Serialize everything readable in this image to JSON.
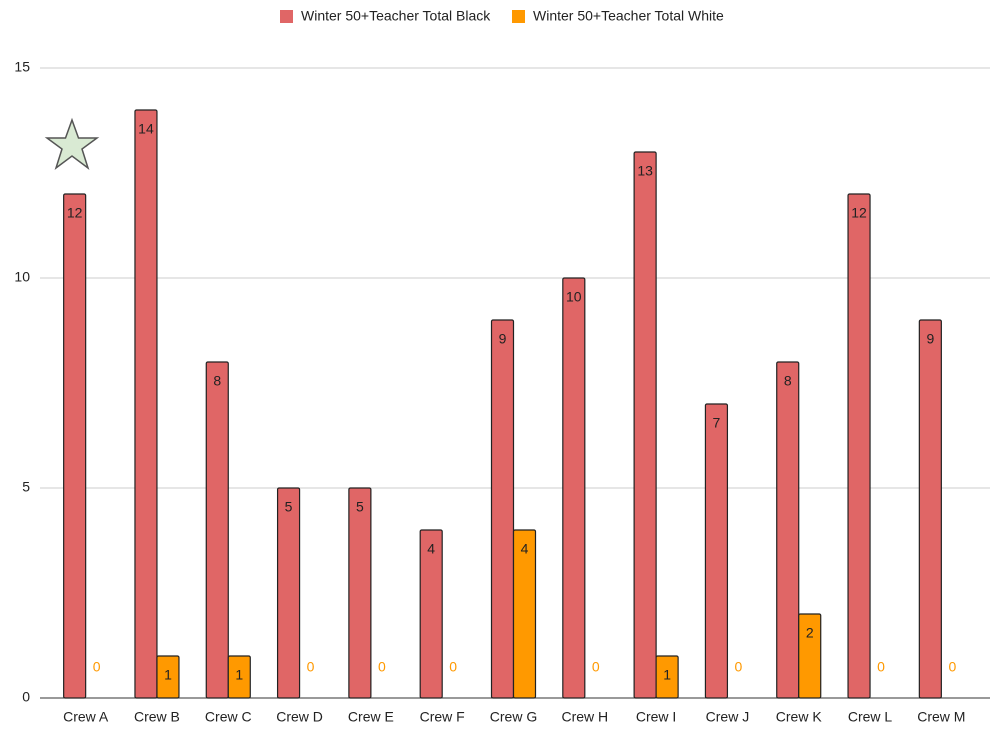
{
  "chart_data": {
    "type": "bar",
    "categories": [
      "Crew A",
      "Crew B",
      "Crew C",
      "Crew D",
      "Crew E",
      "Crew F",
      "Crew G",
      "Crew H",
      "Crew I",
      "Crew J",
      "Crew K",
      "Crew L",
      "Crew M"
    ],
    "series": [
      {
        "name": "Winter 50+Teacher Total Black",
        "color": "#e06666",
        "values": [
          12,
          14,
          8,
          5,
          5,
          4,
          9,
          10,
          13,
          7,
          8,
          12,
          9
        ]
      },
      {
        "name": "Winter 50+Teacher Total White",
        "color": "#ff9900",
        "values": [
          0,
          1,
          1,
          0,
          0,
          0,
          4,
          0,
          1,
          0,
          2,
          0,
          0
        ]
      }
    ],
    "ylim": [
      0,
      15
    ],
    "yticks": [
      0,
      5,
      10,
      15
    ],
    "grid": true,
    "legend": "top"
  }
}
